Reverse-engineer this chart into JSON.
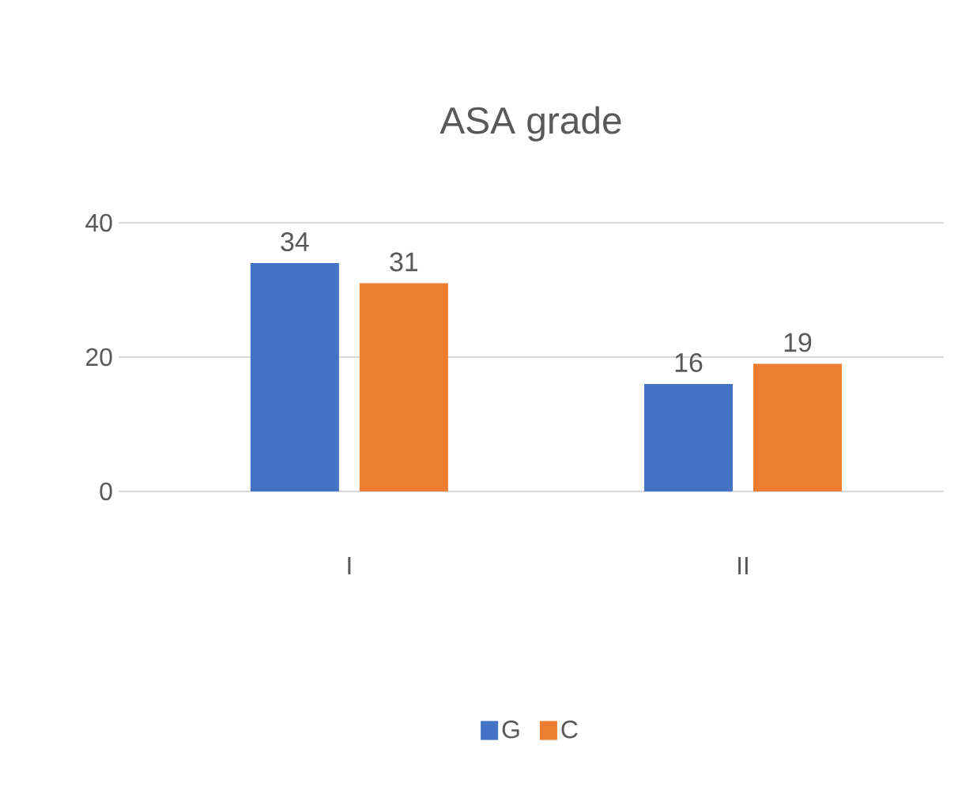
{
  "chart_data": {
    "type": "bar",
    "title": "ASA grade",
    "categories": [
      "I",
      "II"
    ],
    "series": [
      {
        "name": "G",
        "color": "#4472c4",
        "values": [
          34,
          16
        ]
      },
      {
        "name": "C",
        "color": "#ed7d31",
        "values": [
          31,
          19
        ]
      }
    ],
    "ylim": [
      0,
      40
    ],
    "yticks": [
      0,
      20,
      40
    ],
    "grid": "y",
    "legend": "bottom",
    "data_labels": true
  }
}
